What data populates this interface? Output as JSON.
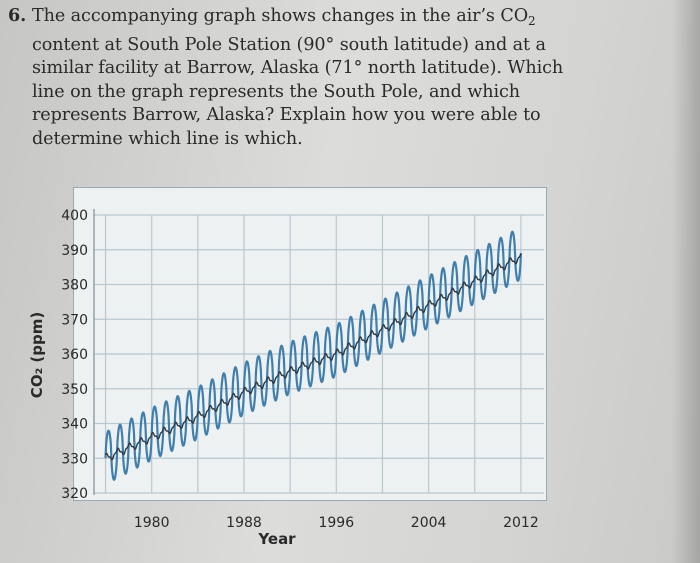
{
  "question": {
    "number": "6.",
    "lines": [
      "The accompanying graph shows changes in the air’s CO",
      "content at South Pole Station (90° south latitude) and at a",
      "similar facility at Barrow, Alaska (71° north latitude). Which",
      "line on the graph represents the South Pole, and which",
      "represents Barrow, Alaska? Explain how you were able to",
      "determine which line is which."
    ],
    "co2_subscript": "2"
  },
  "chart_data": {
    "type": "line",
    "xlabel": "Year",
    "ylabel": "CO₂ (ppm)",
    "xlim": [
      1975,
      2014
    ],
    "ylim": [
      320,
      400
    ],
    "x_ticks": [
      1980,
      1988,
      1996,
      2004,
      2012
    ],
    "y_ticks": [
      320,
      330,
      340,
      350,
      360,
      370,
      380,
      390,
      400
    ],
    "grid": true,
    "series": [
      {
        "color": "#3f7fae",
        "seasonal_amplitude_ppm": 15,
        "x": [
          1976,
          1980,
          1984,
          1988,
          1992,
          1996,
          2000,
          2004,
          2008,
          2012
        ],
        "y": [
          330,
          337,
          343,
          350,
          356,
          361,
          368,
          375,
          382,
          389
        ]
      },
      {
        "color": "#2f3a44",
        "seasonal_amplitude_ppm": 2,
        "x": [
          1976,
          1980,
          1984,
          1988,
          1992,
          1996,
          2000,
          2004,
          2008,
          2012
        ],
        "y": [
          330,
          336,
          342,
          349,
          355,
          360,
          367,
          374,
          381,
          388
        ]
      }
    ]
  }
}
